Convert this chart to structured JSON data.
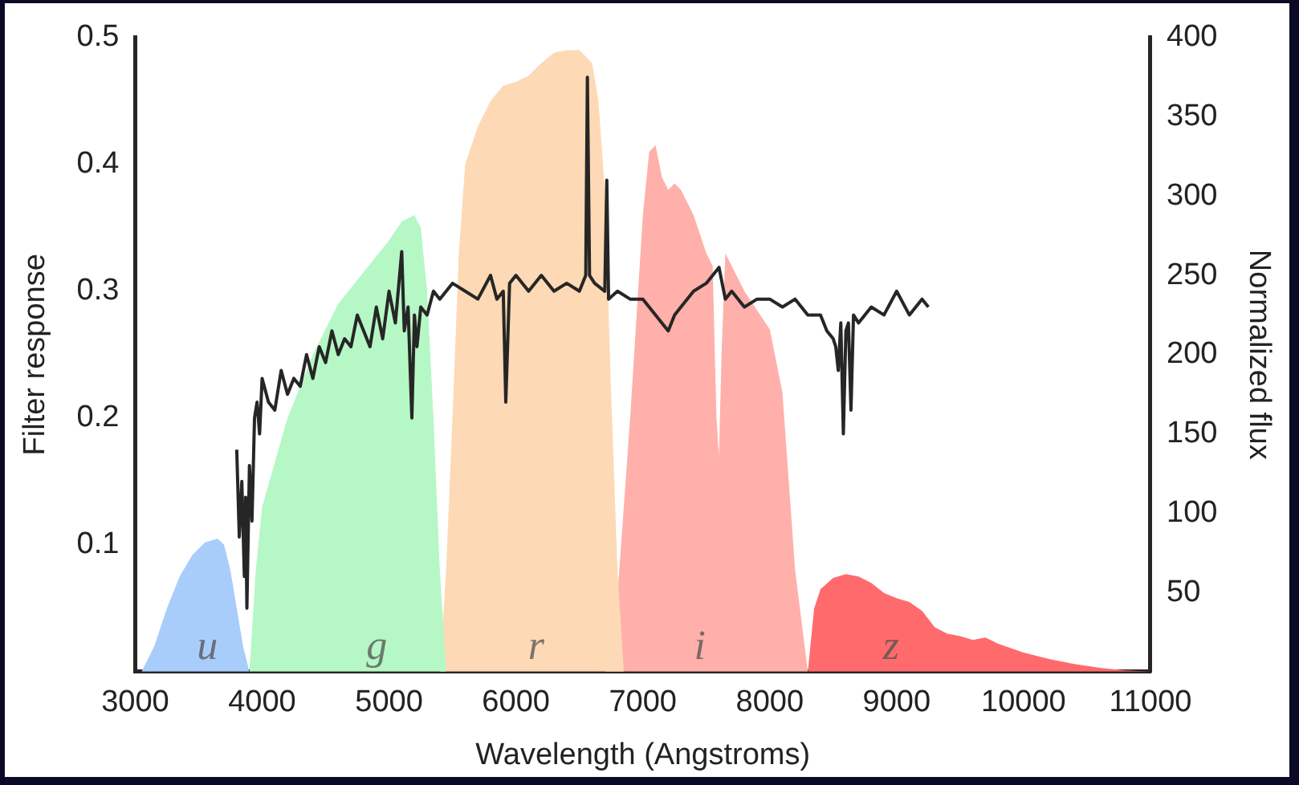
{
  "chart_data": {
    "type": "area",
    "xlabel": "Wavelength (Angstroms)",
    "ylabel": "Filter response",
    "y2label": "Normalized flux",
    "xlim": [
      3000,
      11000
    ],
    "xticks": [
      3000,
      4000,
      5000,
      6000,
      7000,
      8000,
      9000,
      10000,
      11000
    ],
    "ylim": [
      0,
      0.5
    ],
    "yticks": [
      0.1,
      0.2,
      0.3,
      0.4,
      0.5
    ],
    "y2lim": [
      0,
      400
    ],
    "y2ticks": [
      50,
      100,
      150,
      200,
      250,
      300,
      350,
      400
    ],
    "grid": false,
    "legend": false,
    "marker": "none",
    "series": [
      {
        "name": "u",
        "color": "#a8cdfb",
        "x": [
          3050,
          3150,
          3250,
          3350,
          3450,
          3550,
          3650,
          3700,
          3750,
          3800,
          3850,
          3900
        ],
        "values": [
          0,
          0.02,
          0.05,
          0.075,
          0.092,
          0.102,
          0.105,
          0.1,
          0.08,
          0.05,
          0.02,
          0
        ]
      },
      {
        "name": "g",
        "color": "#b6f7c6",
        "x": [
          3900,
          3950,
          4000,
          4200,
          4400,
          4600,
          4800,
          5000,
          5100,
          5200,
          5250,
          5300,
          5350,
          5400,
          5450
        ],
        "values": [
          0,
          0.08,
          0.13,
          0.2,
          0.25,
          0.29,
          0.315,
          0.34,
          0.355,
          0.36,
          0.35,
          0.3,
          0.2,
          0.08,
          0
        ]
      },
      {
        "name": "r",
        "color": "#fdd9b5",
        "x": [
          5400,
          5450,
          5500,
          5550,
          5600,
          5700,
          5800,
          5900,
          6000,
          6100,
          6200,
          6300,
          6400,
          6500,
          6600,
          6650,
          6700,
          6750,
          6800,
          6850
        ],
        "values": [
          0,
          0.08,
          0.2,
          0.33,
          0.4,
          0.43,
          0.45,
          0.462,
          0.465,
          0.47,
          0.48,
          0.488,
          0.49,
          0.49,
          0.48,
          0.45,
          0.38,
          0.22,
          0.08,
          0
        ]
      },
      {
        "name": "i",
        "color": "#ffb0aa",
        "x": [
          6700,
          6800,
          6900,
          7000,
          7050,
          7100,
          7150,
          7200,
          7250,
          7300,
          7400,
          7500,
          7550,
          7580,
          7600,
          7620,
          7650,
          7700,
          7800,
          7900,
          8000,
          8100,
          8150,
          8200,
          8300
        ],
        "values": [
          0,
          0.06,
          0.2,
          0.36,
          0.41,
          0.415,
          0.39,
          0.38,
          0.385,
          0.38,
          0.36,
          0.33,
          0.32,
          0.2,
          0.17,
          0.25,
          0.33,
          0.32,
          0.3,
          0.285,
          0.27,
          0.22,
          0.15,
          0.08,
          0
        ]
      },
      {
        "name": "z",
        "color": "#ff6b6d",
        "x": [
          8300,
          8350,
          8400,
          8500,
          8600,
          8700,
          8800,
          8900,
          9000,
          9100,
          9200,
          9300,
          9400,
          9500,
          9600,
          9700,
          9800,
          10000,
          10200,
          10400,
          10600,
          10800,
          11000
        ],
        "values": [
          0,
          0.05,
          0.065,
          0.074,
          0.077,
          0.075,
          0.07,
          0.062,
          0.058,
          0.055,
          0.048,
          0.035,
          0.03,
          0.028,
          0.025,
          0.027,
          0.022,
          0.015,
          0.01,
          0.006,
          0.003,
          0.001,
          0
        ]
      },
      {
        "type": "line",
        "axis": "y2",
        "color": "#262626",
        "x": [
          3800,
          3820,
          3840,
          3860,
          3870,
          3880,
          3900,
          3920,
          3940,
          3960,
          3980,
          4000,
          4050,
          4100,
          4150,
          4200,
          4250,
          4300,
          4350,
          4400,
          4450,
          4500,
          4550,
          4600,
          4650,
          4700,
          4750,
          4800,
          4850,
          4900,
          4950,
          5000,
          5050,
          5100,
          5120,
          5150,
          5180,
          5200,
          5220,
          5250,
          5300,
          5350,
          5400,
          5500,
          5600,
          5700,
          5800,
          5850,
          5900,
          5920,
          5950,
          6000,
          6100,
          6200,
          6300,
          6400,
          6500,
          6550,
          6563,
          6580,
          6620,
          6700,
          6716,
          6730,
          6800,
          6900,
          7000,
          7100,
          7200,
          7250,
          7300,
          7400,
          7500,
          7600,
          7650,
          7700,
          7800,
          7900,
          8000,
          8100,
          8200,
          8300,
          8400,
          8450,
          8500,
          8520,
          8540,
          8560,
          8580,
          8600,
          8620,
          8640,
          8660,
          8700,
          8800,
          8900,
          9000,
          9100,
          9200,
          9250
        ],
        "values": [
          140,
          85,
          120,
          60,
          110,
          40,
          130,
          95,
          160,
          170,
          150,
          185,
          170,
          165,
          190,
          175,
          185,
          180,
          200,
          185,
          205,
          195,
          215,
          200,
          210,
          205,
          225,
          215,
          205,
          230,
          210,
          240,
          220,
          265,
          215,
          230,
          160,
          225,
          205,
          230,
          225,
          240,
          235,
          245,
          240,
          235,
          250,
          235,
          240,
          170,
          245,
          250,
          240,
          250,
          240,
          245,
          240,
          250,
          375,
          250,
          245,
          240,
          310,
          235,
          240,
          235,
          235,
          225,
          215,
          225,
          230,
          240,
          245,
          255,
          235,
          240,
          230,
          235,
          235,
          230,
          235,
          225,
          225,
          215,
          210,
          205,
          190,
          220,
          150,
          215,
          220,
          165,
          225,
          220,
          230,
          225,
          240,
          225,
          235,
          230
        ]
      }
    ]
  }
}
